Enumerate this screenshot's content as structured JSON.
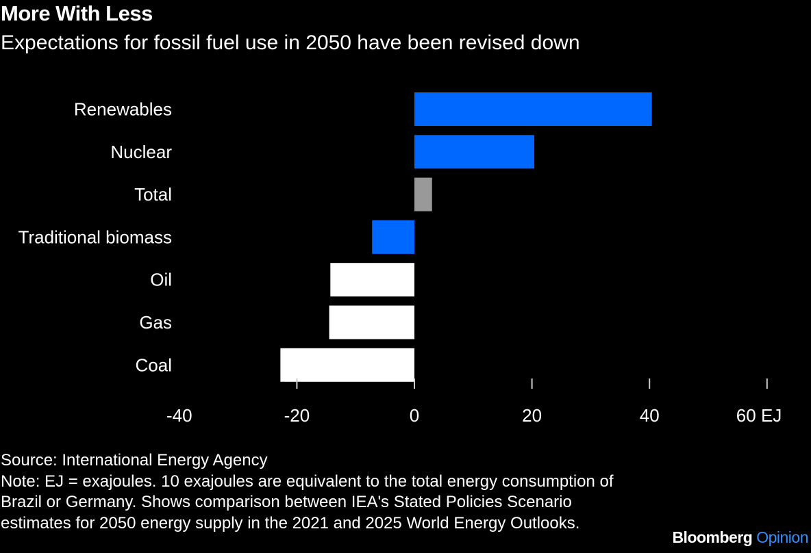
{
  "header": {
    "title": "More With Less",
    "subtitle": "Expectations for fossil fuel use in 2050 have been revised down"
  },
  "chart_data": {
    "type": "bar",
    "orientation": "horizontal",
    "categories": [
      "Renewables",
      "Nuclear",
      "Total",
      "Traditional biomass",
      "Oil",
      "Gas",
      "Coal"
    ],
    "values": [
      40.4,
      20.4,
      3.0,
      -7.2,
      -14.3,
      -14.5,
      -22.8
    ],
    "colors": [
      "#0068ff",
      "#0068ff",
      "#999999",
      "#0068ff",
      "#ffffff",
      "#ffffff",
      "#ffffff"
    ],
    "xlim": [
      -40,
      60
    ],
    "ticks": [
      -40,
      -20,
      0,
      20,
      40,
      60
    ],
    "tick_labels": [
      "-40",
      "-20",
      "0",
      "20",
      "40",
      "60 EJ"
    ],
    "grid": false
  },
  "footer": {
    "source": "Source: International Energy Agency",
    "note": "Note: EJ = exajoules. 10 exajoules are equivalent to the total energy consumption of Brazil or Germany. Shows comparison between IEA's Stated Policies Scenario estimates for 2050 energy supply in the 2021 and 2025 World Energy Outlooks."
  },
  "logo": {
    "brand": "Bloomberg",
    "section": "Opinion"
  }
}
